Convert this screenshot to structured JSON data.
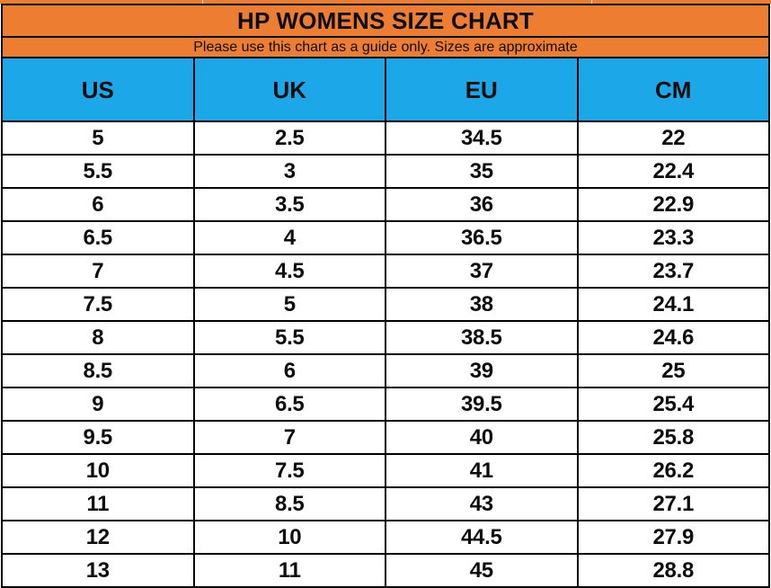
{
  "colors": {
    "header_orange": "#ED7D31",
    "header_blue": "#1BA7E8",
    "gridline_black": "#000000",
    "text_black": "#0d0d0d",
    "row_white": "#ffffff"
  },
  "header": {
    "title": "HP WOMENS SIZE CHART",
    "subtitle": "Please use this chart as a guide only. Sizes are approximate"
  },
  "chart_data": {
    "type": "table",
    "title": "HP WOMENS SIZE CHART",
    "subtitle": "Please use this chart as a guide only. Sizes are approximate",
    "columns": [
      "US",
      "UK",
      "EU",
      "CM"
    ],
    "rows": [
      [
        "5",
        "2.5",
        "34.5",
        "22"
      ],
      [
        "5.5",
        "3",
        "35",
        "22.4"
      ],
      [
        "6",
        "3.5",
        "36",
        "22.9"
      ],
      [
        "6.5",
        "4",
        "36.5",
        "23.3"
      ],
      [
        "7",
        "4.5",
        "37",
        "23.7"
      ],
      [
        "7.5",
        "5",
        "38",
        "24.1"
      ],
      [
        "8",
        "5.5",
        "38.5",
        "24.6"
      ],
      [
        "8.5",
        "6",
        "39",
        "25"
      ],
      [
        "9",
        "6.5",
        "39.5",
        "25.4"
      ],
      [
        "9.5",
        "7",
        "40",
        "25.8"
      ],
      [
        "10",
        "7.5",
        "41",
        "26.2"
      ],
      [
        "11",
        "8.5",
        "43",
        "27.1"
      ],
      [
        "12",
        "10",
        "44.5",
        "27.9"
      ],
      [
        "13",
        "11",
        "45",
        "28.8"
      ]
    ],
    "layout": {
      "grid": "on",
      "columns_equal_width": true,
      "row_count": 14
    }
  }
}
